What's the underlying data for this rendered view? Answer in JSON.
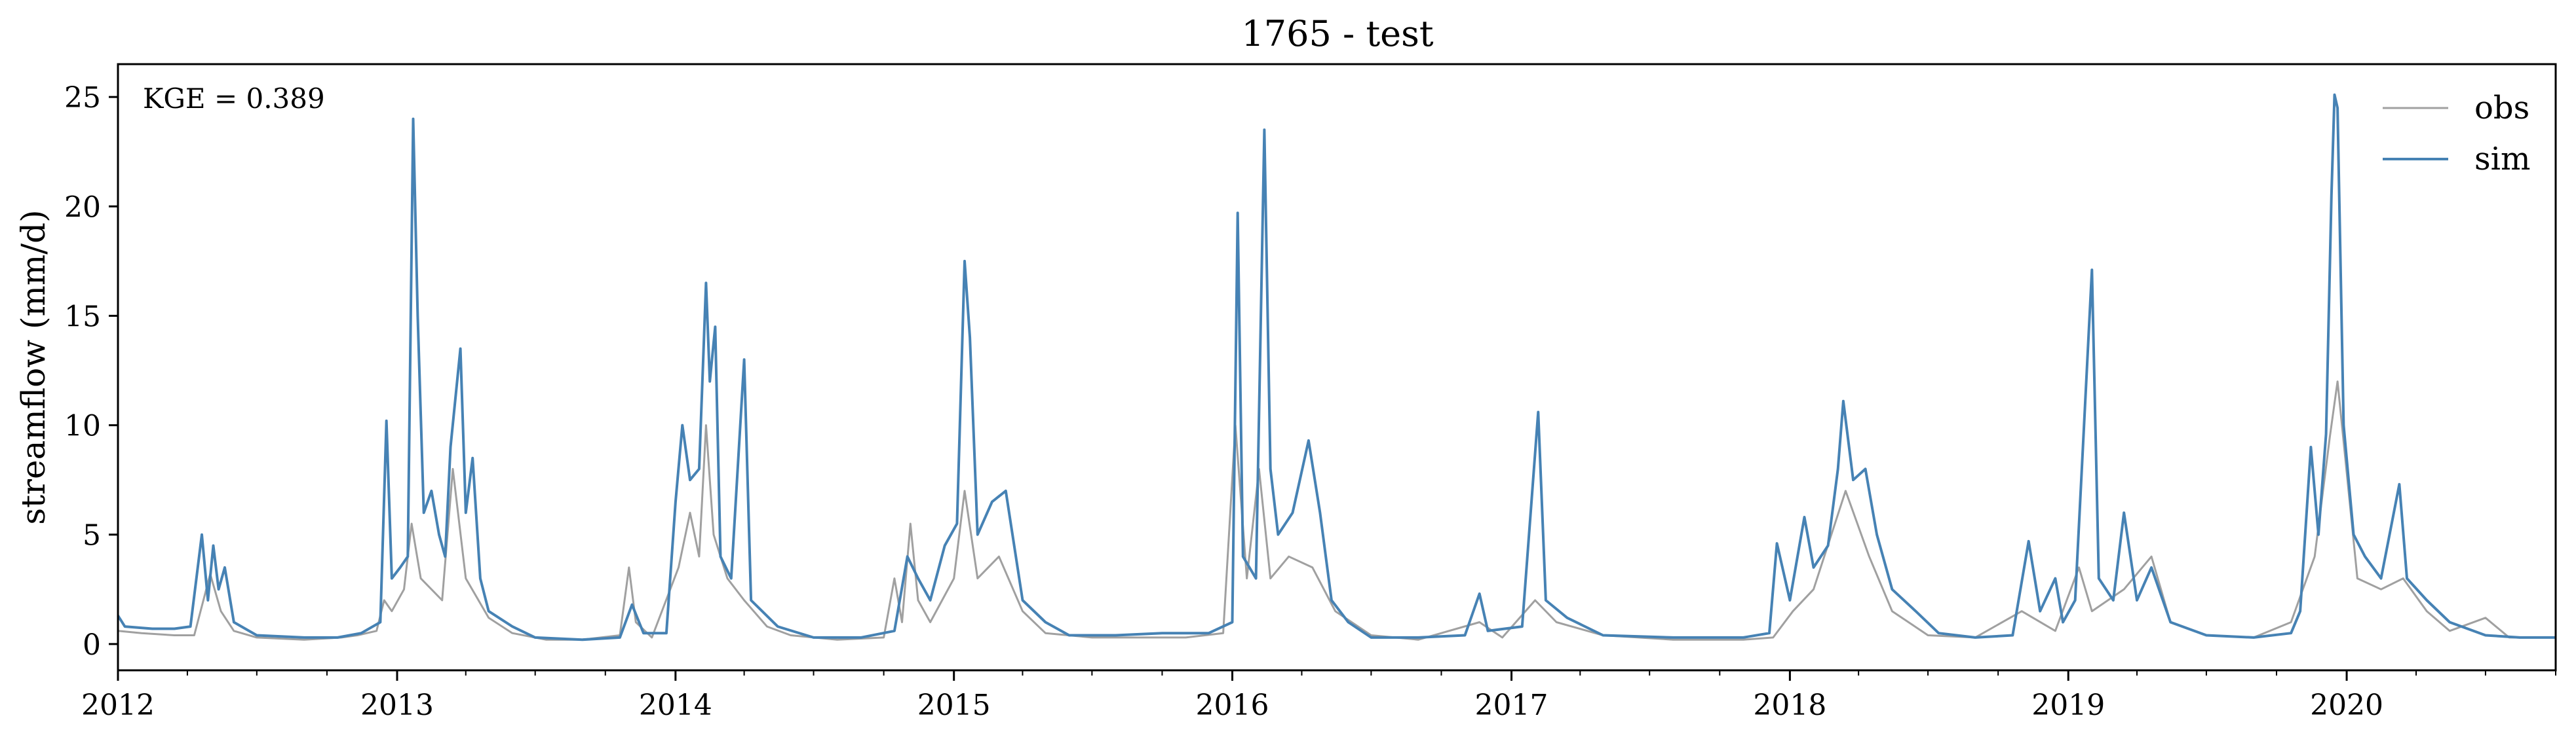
{
  "chart_data": {
    "type": "line",
    "title": "1765 - test",
    "xlabel": "",
    "ylabel": "streamflow (mm/d)",
    "annotation": "KGE = 0.389",
    "xlim": [
      "2012-01-01",
      "2020-10-01"
    ],
    "ylim": [
      -1.2,
      26.5
    ],
    "yticks": [
      0,
      5,
      10,
      15,
      20,
      25
    ],
    "xticks": [
      "2012",
      "2013",
      "2014",
      "2015",
      "2016",
      "2017",
      "2018",
      "2019",
      "2020"
    ],
    "legend_position": "top-right",
    "grid": false,
    "series": [
      {
        "name": "obs",
        "color": "#a0a0a0",
        "points": [
          [
            "2012-01-01",
            0.6
          ],
          [
            "2012-02-01",
            0.5
          ],
          [
            "2012-03-15",
            0.4
          ],
          [
            "2012-04-10",
            0.4
          ],
          [
            "2012-04-22",
            2.0
          ],
          [
            "2012-05-01",
            3.2
          ],
          [
            "2012-05-15",
            1.5
          ],
          [
            "2012-06-01",
            0.6
          ],
          [
            "2012-07-01",
            0.3
          ],
          [
            "2012-09-01",
            0.2
          ],
          [
            "2012-10-20",
            0.3
          ],
          [
            "2012-11-10",
            0.4
          ],
          [
            "2012-12-05",
            0.6
          ],
          [
            "2012-12-15",
            2.0
          ],
          [
            "2012-12-25",
            1.5
          ],
          [
            "2013-01-10",
            2.5
          ],
          [
            "2013-01-20",
            5.5
          ],
          [
            "2013-02-01",
            3.0
          ],
          [
            "2013-03-01",
            2.0
          ],
          [
            "2013-03-15",
            8.0
          ],
          [
            "2013-04-01",
            3.0
          ],
          [
            "2013-05-01",
            1.2
          ],
          [
            "2013-06-01",
            0.5
          ],
          [
            "2013-07-15",
            0.2
          ],
          [
            "2013-09-01",
            0.2
          ],
          [
            "2013-10-20",
            0.4
          ],
          [
            "2013-11-01",
            3.5
          ],
          [
            "2013-11-10",
            1.0
          ],
          [
            "2013-12-01",
            0.3
          ],
          [
            "2014-01-05",
            3.5
          ],
          [
            "2014-01-20",
            6.0
          ],
          [
            "2014-02-01",
            4.0
          ],
          [
            "2014-02-10",
            10.0
          ],
          [
            "2014-02-20",
            5.0
          ],
          [
            "2014-03-10",
            3.0
          ],
          [
            "2014-04-01",
            2.0
          ],
          [
            "2014-05-01",
            0.8
          ],
          [
            "2014-06-01",
            0.4
          ],
          [
            "2014-08-01",
            0.2
          ],
          [
            "2014-10-01",
            0.3
          ],
          [
            "2014-10-15",
            3.0
          ],
          [
            "2014-10-25",
            1.0
          ],
          [
            "2014-11-05",
            5.5
          ],
          [
            "2014-11-15",
            2.0
          ],
          [
            "2014-12-01",
            1.0
          ],
          [
            "2015-01-01",
            3.0
          ],
          [
            "2015-01-15",
            7.0
          ],
          [
            "2015-02-01",
            3.0
          ],
          [
            "2015-03-01",
            4.0
          ],
          [
            "2015-04-01",
            1.5
          ],
          [
            "2015-05-01",
            0.5
          ],
          [
            "2015-07-01",
            0.3
          ],
          [
            "2015-09-01",
            0.3
          ],
          [
            "2015-11-01",
            0.3
          ],
          [
            "2015-12-20",
            0.5
          ],
          [
            "2016-01-05",
            10.0
          ],
          [
            "2016-01-20",
            3.0
          ],
          [
            "2016-02-05",
            8.0
          ],
          [
            "2016-02-20",
            3.0
          ],
          [
            "2016-03-15",
            4.0
          ],
          [
            "2016-04-15",
            3.5
          ],
          [
            "2016-05-15",
            1.5
          ],
          [
            "2016-07-01",
            0.4
          ],
          [
            "2016-09-01",
            0.2
          ],
          [
            "2016-11-20",
            1.0
          ],
          [
            "2016-12-20",
            0.3
          ],
          [
            "2017-02-01",
            2.0
          ],
          [
            "2017-03-01",
            1.0
          ],
          [
            "2017-05-01",
            0.4
          ],
          [
            "2017-08-01",
            0.2
          ],
          [
            "2017-11-01",
            0.2
          ],
          [
            "2017-12-10",
            0.3
          ],
          [
            "2018-01-05",
            1.5
          ],
          [
            "2018-02-01",
            2.5
          ],
          [
            "2018-03-15",
            7.0
          ],
          [
            "2018-04-15",
            4.0
          ],
          [
            "2018-05-15",
            1.5
          ],
          [
            "2018-07-01",
            0.4
          ],
          [
            "2018-09-01",
            0.3
          ],
          [
            "2018-11-01",
            1.5
          ],
          [
            "2018-12-15",
            0.6
          ],
          [
            "2019-01-15",
            3.5
          ],
          [
            "2019-02-01",
            1.5
          ],
          [
            "2019-03-15",
            2.5
          ],
          [
            "2019-04-20",
            4.0
          ],
          [
            "2019-05-15",
            1.0
          ],
          [
            "2019-07-01",
            0.4
          ],
          [
            "2019-09-01",
            0.3
          ],
          [
            "2019-10-20",
            1.0
          ],
          [
            "2019-11-20",
            4.0
          ],
          [
            "2019-12-10",
            9.5
          ],
          [
            "2019-12-20",
            12.0
          ],
          [
            "2020-01-15",
            3.0
          ],
          [
            "2020-02-15",
            2.5
          ],
          [
            "2020-03-15",
            3.0
          ],
          [
            "2020-04-15",
            1.5
          ],
          [
            "2020-05-15",
            0.6
          ],
          [
            "2020-07-01",
            1.2
          ],
          [
            "2020-08-01",
            0.3
          ],
          [
            "2020-10-01",
            0.3
          ]
        ]
      },
      {
        "name": "sim",
        "color": "#4682b4",
        "points": [
          [
            "2012-01-01",
            1.3
          ],
          [
            "2012-01-10",
            0.8
          ],
          [
            "2012-02-15",
            0.7
          ],
          [
            "2012-03-15",
            0.7
          ],
          [
            "2012-04-05",
            0.8
          ],
          [
            "2012-04-20",
            5.0
          ],
          [
            "2012-04-28",
            2.0
          ],
          [
            "2012-05-05",
            4.5
          ],
          [
            "2012-05-12",
            2.5
          ],
          [
            "2012-05-20",
            3.5
          ],
          [
            "2012-06-01",
            1.0
          ],
          [
            "2012-07-01",
            0.4
          ],
          [
            "2012-09-01",
            0.3
          ],
          [
            "2012-10-15",
            0.3
          ],
          [
            "2012-11-15",
            0.5
          ],
          [
            "2012-12-10",
            1.0
          ],
          [
            "2012-12-18",
            10.2
          ],
          [
            "2012-12-25",
            3.0
          ],
          [
            "2013-01-05",
            3.5
          ],
          [
            "2013-01-15",
            4.0
          ],
          [
            "2013-01-22",
            24.0
          ],
          [
            "2013-01-28",
            15.0
          ],
          [
            "2013-02-05",
            6.0
          ],
          [
            "2013-02-15",
            7.0
          ],
          [
            "2013-02-25",
            5.0
          ],
          [
            "2013-03-05",
            4.0
          ],
          [
            "2013-03-12",
            9.0
          ],
          [
            "2013-03-25",
            13.5
          ],
          [
            "2013-04-01",
            6.0
          ],
          [
            "2013-04-10",
            8.5
          ],
          [
            "2013-04-20",
            3.0
          ],
          [
            "2013-05-01",
            1.5
          ],
          [
            "2013-06-01",
            0.8
          ],
          [
            "2013-07-01",
            0.3
          ],
          [
            "2013-09-01",
            0.2
          ],
          [
            "2013-10-20",
            0.3
          ],
          [
            "2013-11-05",
            1.8
          ],
          [
            "2013-11-20",
            0.5
          ],
          [
            "2013-12-20",
            0.5
          ],
          [
            "2014-01-01",
            6.5
          ],
          [
            "2014-01-10",
            10.0
          ],
          [
            "2014-01-20",
            7.5
          ],
          [
            "2014-02-01",
            8.0
          ],
          [
            "2014-02-10",
            16.5
          ],
          [
            "2014-02-15",
            12.0
          ],
          [
            "2014-02-22",
            14.5
          ],
          [
            "2014-03-01",
            4.0
          ],
          [
            "2014-03-15",
            3.0
          ],
          [
            "2014-04-01",
            13.0
          ],
          [
            "2014-04-10",
            2.0
          ],
          [
            "2014-05-15",
            0.8
          ],
          [
            "2014-07-01",
            0.3
          ],
          [
            "2014-09-01",
            0.3
          ],
          [
            "2014-10-15",
            0.6
          ],
          [
            "2014-11-01",
            4.0
          ],
          [
            "2014-11-15",
            3.0
          ],
          [
            "2014-12-01",
            2.0
          ],
          [
            "2014-12-20",
            4.5
          ],
          [
            "2015-01-05",
            5.5
          ],
          [
            "2015-01-15",
            17.5
          ],
          [
            "2015-01-22",
            14.0
          ],
          [
            "2015-02-01",
            5.0
          ],
          [
            "2015-02-20",
            6.5
          ],
          [
            "2015-03-10",
            7.0
          ],
          [
            "2015-04-01",
            2.0
          ],
          [
            "2015-05-01",
            1.0
          ],
          [
            "2015-06-01",
            0.4
          ],
          [
            "2015-08-01",
            0.4
          ],
          [
            "2015-10-01",
            0.5
          ],
          [
            "2015-12-01",
            0.5
          ],
          [
            "2016-01-01",
            1.0
          ],
          [
            "2016-01-08",
            19.7
          ],
          [
            "2016-01-15",
            4.0
          ],
          [
            "2016-02-01",
            3.0
          ],
          [
            "2016-02-12",
            23.5
          ],
          [
            "2016-02-20",
            8.0
          ],
          [
            "2016-03-01",
            5.0
          ],
          [
            "2016-03-20",
            6.0
          ],
          [
            "2016-04-10",
            9.3
          ],
          [
            "2016-04-25",
            6.0
          ],
          [
            "2016-05-10",
            2.0
          ],
          [
            "2016-06-01",
            1.0
          ],
          [
            "2016-07-01",
            0.3
          ],
          [
            "2016-09-01",
            0.3
          ],
          [
            "2016-11-01",
            0.4
          ],
          [
            "2016-11-20",
            2.3
          ],
          [
            "2016-12-01",
            0.6
          ],
          [
            "2017-01-15",
            0.8
          ],
          [
            "2017-02-05",
            10.6
          ],
          [
            "2017-02-15",
            2.0
          ],
          [
            "2017-03-15",
            1.2
          ],
          [
            "2017-05-01",
            0.4
          ],
          [
            "2017-08-01",
            0.3
          ],
          [
            "2017-11-01",
            0.3
          ],
          [
            "2017-12-05",
            0.5
          ],
          [
            "2017-12-15",
            4.6
          ],
          [
            "2018-01-01",
            2.0
          ],
          [
            "2018-01-20",
            5.8
          ],
          [
            "2018-02-01",
            3.5
          ],
          [
            "2018-02-20",
            4.5
          ],
          [
            "2018-03-05",
            8.0
          ],
          [
            "2018-03-12",
            11.1
          ],
          [
            "2018-03-25",
            7.5
          ],
          [
            "2018-04-10",
            8.0
          ],
          [
            "2018-04-25",
            5.0
          ],
          [
            "2018-05-15",
            2.5
          ],
          [
            "2018-06-15",
            1.5
          ],
          [
            "2018-07-15",
            0.5
          ],
          [
            "2018-09-01",
            0.3
          ],
          [
            "2018-10-20",
            0.4
          ],
          [
            "2018-11-10",
            4.7
          ],
          [
            "2018-11-25",
            1.5
          ],
          [
            "2018-12-15",
            3.0
          ],
          [
            "2018-12-25",
            1.0
          ],
          [
            "2019-01-10",
            2.0
          ],
          [
            "2019-02-01",
            17.1
          ],
          [
            "2019-02-10",
            3.0
          ],
          [
            "2019-03-01",
            2.0
          ],
          [
            "2019-03-15",
            6.0
          ],
          [
            "2019-04-01",
            2.0
          ],
          [
            "2019-04-20",
            3.5
          ],
          [
            "2019-05-15",
            1.0
          ],
          [
            "2019-07-01",
            0.4
          ],
          [
            "2019-09-01",
            0.3
          ],
          [
            "2019-10-20",
            0.5
          ],
          [
            "2019-11-01",
            1.5
          ],
          [
            "2019-11-15",
            9.0
          ],
          [
            "2019-11-25",
            5.0
          ],
          [
            "2019-12-05",
            9.6
          ],
          [
            "2019-12-12",
            20.5
          ],
          [
            "2019-12-16",
            25.1
          ],
          [
            "2019-12-20",
            24.5
          ],
          [
            "2019-12-28",
            10.0
          ],
          [
            "2020-01-10",
            5.0
          ],
          [
            "2020-01-25",
            4.0
          ],
          [
            "2020-02-15",
            3.0
          ],
          [
            "2020-03-10",
            7.3
          ],
          [
            "2020-03-20",
            3.0
          ],
          [
            "2020-04-15",
            2.0
          ],
          [
            "2020-05-15",
            1.0
          ],
          [
            "2020-07-01",
            0.4
          ],
          [
            "2020-08-15",
            0.3
          ],
          [
            "2020-10-01",
            0.3
          ]
        ]
      }
    ]
  }
}
